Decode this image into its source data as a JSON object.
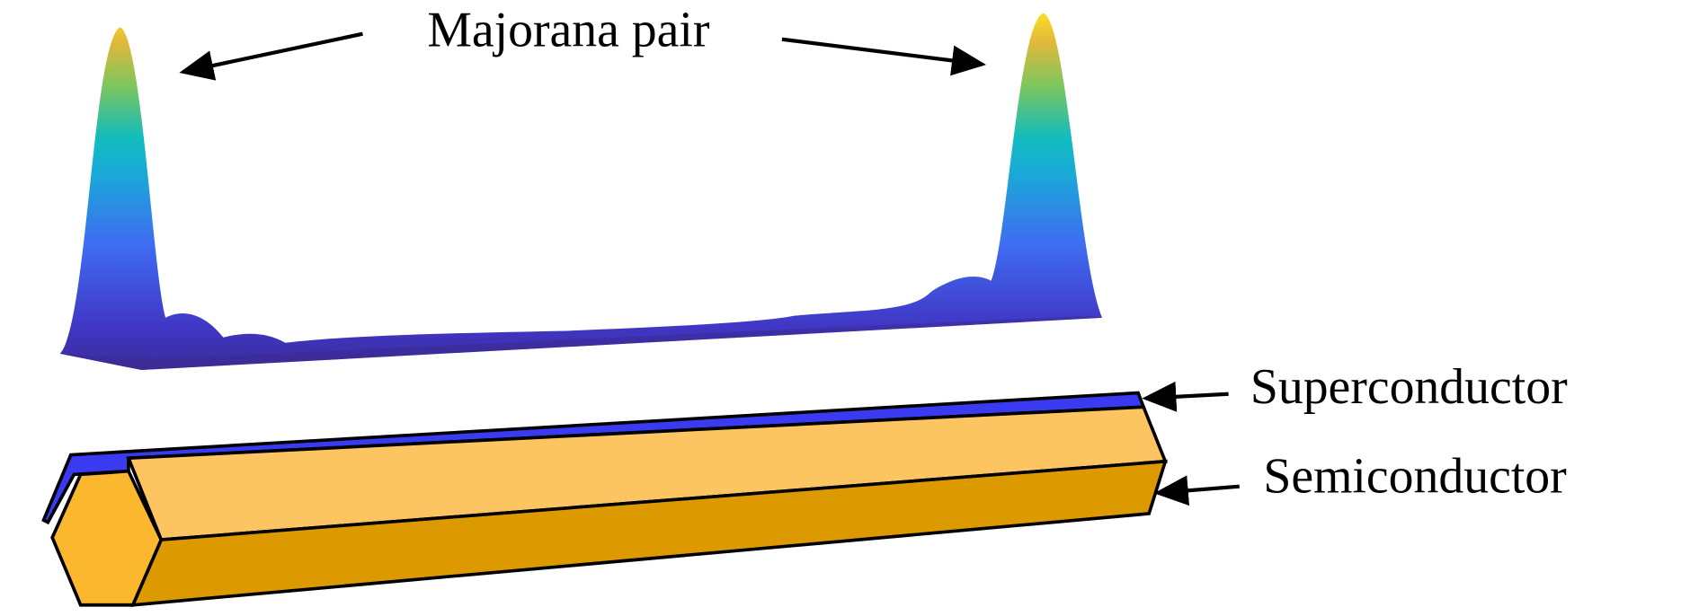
{
  "annotations": {
    "majorana": "Majorana pair",
    "superconductor": "Superconductor",
    "semiconductor": "Semiconductor"
  }
}
